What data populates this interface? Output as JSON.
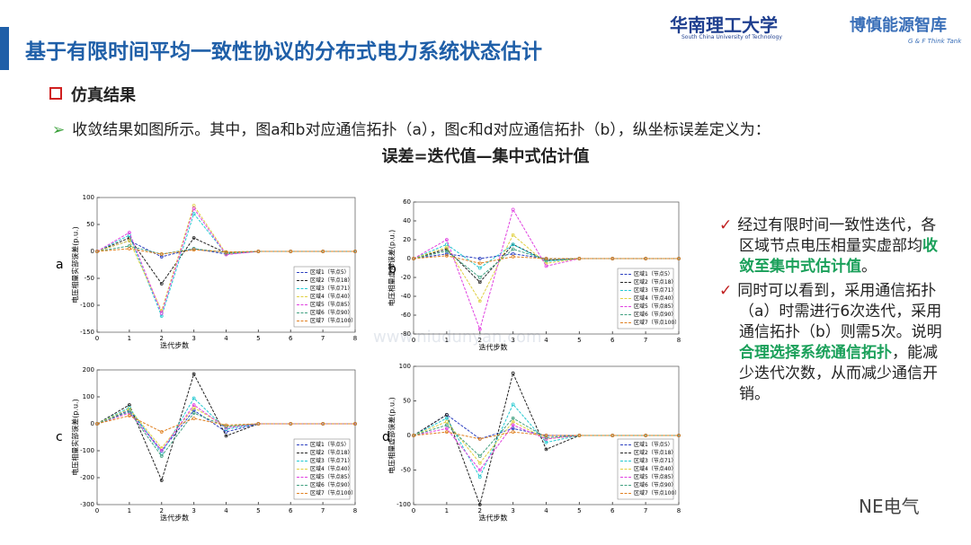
{
  "header": {
    "title": "基于有限时间平均一致性协议的分布式电力系统状态估计",
    "logo1": "华南理工大学",
    "logo1_sub": "South China University of Technology",
    "logo2": "博慎能源智库",
    "logo2_sub": "G & F Think Tank"
  },
  "section": "仿真结果",
  "bullet": "收敛结果如图所示。其中，图a和b对应通信拓扑（a），图c和d对应通信拓扑（b），纵坐标误差定义为：",
  "formula": "误差=迭代值—集中式估计值",
  "notes": [
    {
      "text": "经过有限时间一致性迭代，各区域节点电压相量实虚部均",
      "highlight": "收敛至集中式估计值",
      "tail": "。"
    },
    {
      "text": "同时可以看到，采用通信拓扑（a）时需进行6次迭代，采用通信拓扑（b）则需5次。说明",
      "highlight": "合理选择系统通信拓扑",
      "tail": "，能减少迭代次数，从而减少通信开销。"
    }
  ],
  "watermark": "www.niudunyan.com",
  "footer": "NE电气",
  "charts": [
    {
      "type": "line",
      "label": "a",
      "xlabel": "迭代步数",
      "ylabel": "电压相量实部误差(p.u.)",
      "x": [
        0,
        1,
        2,
        3,
        4,
        5,
        6,
        7,
        8
      ],
      "xlim": [
        0,
        8
      ],
      "xticks": [
        0,
        1,
        2,
        3,
        4,
        5,
        6,
        7,
        8
      ],
      "ylim": [
        -150,
        100
      ],
      "yticks": [
        -150,
        -100,
        -50,
        0,
        50,
        100
      ],
      "series": [
        {
          "name": "区域1（节点5）",
          "color": "#2b3fc0",
          "values": [
            0,
            20,
            -10,
            5,
            -5,
            0,
            0,
            0,
            0
          ]
        },
        {
          "name": "区域2（节点18）",
          "color": "#222222",
          "values": [
            0,
            25,
            -60,
            25,
            -3,
            0,
            0,
            0,
            0
          ]
        },
        {
          "name": "区域3（节点71）",
          "color": "#22c8d0",
          "values": [
            0,
            30,
            -120,
            70,
            -5,
            0,
            0,
            0,
            0
          ]
        },
        {
          "name": "区域4（节点40）",
          "color": "#e0d040",
          "values": [
            0,
            20,
            -110,
            85,
            -4,
            0,
            0,
            0,
            0
          ]
        },
        {
          "name": "区域5（节点85）",
          "color": "#e040e0",
          "values": [
            0,
            35,
            -115,
            80,
            -6,
            0,
            0,
            0,
            0
          ]
        },
        {
          "name": "区域6（节点90）",
          "color": "#40a080",
          "values": [
            0,
            10,
            -5,
            5,
            -2,
            0,
            0,
            0,
            0
          ]
        },
        {
          "name": "区域7（节点100）",
          "color": "#e08020",
          "values": [
            0,
            5,
            -5,
            3,
            -1,
            0,
            0,
            0,
            0
          ]
        }
      ]
    },
    {
      "type": "line",
      "label": "b",
      "xlabel": "迭代步数",
      "ylabel": "电压相量虚部误差(p.u.)",
      "x": [
        0,
        1,
        2,
        3,
        4,
        5,
        6,
        7,
        8
      ],
      "xlim": [
        0,
        8
      ],
      "xticks": [
        0,
        1,
        2,
        3,
        4,
        5,
        6,
        7,
        8
      ],
      "ylim": [
        -80,
        60
      ],
      "yticks": [
        -80,
        -60,
        -40,
        -20,
        0,
        20,
        40,
        60
      ],
      "series": [
        {
          "name": "区域1（节点5）",
          "color": "#2b3fc0",
          "values": [
            0,
            5,
            0,
            5,
            0,
            0,
            0,
            0,
            0
          ]
        },
        {
          "name": "区域2（节点18）",
          "color": "#222222",
          "values": [
            0,
            10,
            -25,
            15,
            -2,
            0,
            0,
            0,
            0
          ]
        },
        {
          "name": "区域3（节点71）",
          "color": "#22c8d0",
          "values": [
            0,
            15,
            -10,
            15,
            -3,
            0,
            0,
            0,
            0
          ]
        },
        {
          "name": "区域4（节点40）",
          "color": "#e0d040",
          "values": [
            0,
            12,
            -45,
            25,
            -5,
            0,
            0,
            0,
            0
          ]
        },
        {
          "name": "区域5（节点85）",
          "color": "#e040e0",
          "values": [
            0,
            20,
            -75,
            52,
            -8,
            0,
            0,
            0,
            0
          ]
        },
        {
          "name": "区域6（节点90）",
          "color": "#40a080",
          "values": [
            0,
            8,
            -20,
            10,
            -1,
            0,
            0,
            0,
            0
          ]
        },
        {
          "name": "区域7（节点100）",
          "color": "#e08020",
          "values": [
            0,
            3,
            -5,
            2,
            0,
            0,
            0,
            0,
            0
          ]
        }
      ]
    },
    {
      "type": "line",
      "label": "c",
      "xlabel": "迭代步数",
      "ylabel": "电压相量实部误差(p.u.)",
      "x": [
        0,
        1,
        2,
        3,
        4,
        5,
        6,
        7,
        8
      ],
      "xlim": [
        0,
        8
      ],
      "xticks": [
        0,
        1,
        2,
        3,
        4,
        5,
        6,
        7,
        8
      ],
      "ylim": [
        -300,
        200
      ],
      "yticks": [
        -300,
        -200,
        -100,
        0,
        100,
        200
      ],
      "series": [
        {
          "name": "区域1（节点5）",
          "color": "#2b3fc0",
          "values": [
            0,
            50,
            -100,
            50,
            -30,
            0,
            0,
            0,
            0
          ]
        },
        {
          "name": "区域2（节点18）",
          "color": "#222222",
          "values": [
            0,
            70,
            -210,
            185,
            -45,
            0,
            0,
            0,
            0
          ]
        },
        {
          "name": "区域3（节点71）",
          "color": "#22c8d0",
          "values": [
            0,
            60,
            -110,
            95,
            -20,
            0,
            0,
            0,
            0
          ]
        },
        {
          "name": "区域4（节点40）",
          "color": "#e0d040",
          "values": [
            0,
            55,
            -90,
            60,
            -10,
            0,
            0,
            0,
            0
          ]
        },
        {
          "name": "区域5（节点85）",
          "color": "#e040e0",
          "values": [
            0,
            40,
            -100,
            70,
            -15,
            0,
            0,
            0,
            0
          ]
        },
        {
          "name": "区域6（节点90）",
          "color": "#40a080",
          "values": [
            0,
            45,
            -120,
            40,
            -10,
            0,
            0,
            0,
            0
          ]
        },
        {
          "name": "区域7（节点100）",
          "color": "#e08020",
          "values": [
            0,
            30,
            -30,
            20,
            -5,
            0,
            0,
            0,
            0
          ]
        }
      ]
    },
    {
      "type": "line",
      "label": "d",
      "xlabel": "迭代步数",
      "ylabel": "电压相量虚部误差(p.u.)",
      "x": [
        0,
        1,
        2,
        3,
        4,
        5,
        6,
        7,
        8
      ],
      "xlim": [
        0,
        8
      ],
      "xticks": [
        0,
        1,
        2,
        3,
        4,
        5,
        6,
        7,
        8
      ],
      "ylim": [
        -100,
        100
      ],
      "yticks": [
        -100,
        -50,
        0,
        50,
        100
      ],
      "series": [
        {
          "name": "区域1（节点5）",
          "color": "#2b3fc0",
          "values": [
            0,
            30,
            -5,
            10,
            0,
            0,
            0,
            0,
            0
          ]
        },
        {
          "name": "区域2（节点18）",
          "color": "#222222",
          "values": [
            0,
            30,
            -100,
            90,
            -20,
            0,
            0,
            0,
            0
          ]
        },
        {
          "name": "区域3（节点71）",
          "color": "#22c8d0",
          "values": [
            0,
            25,
            -60,
            45,
            -10,
            0,
            0,
            0,
            0
          ]
        },
        {
          "name": "区域4（节点40）",
          "color": "#e0d040",
          "values": [
            0,
            20,
            -40,
            20,
            -5,
            0,
            0,
            0,
            0
          ]
        },
        {
          "name": "区域5（节点85）",
          "color": "#e040e0",
          "values": [
            0,
            10,
            -50,
            15,
            -5,
            0,
            0,
            0,
            0
          ]
        },
        {
          "name": "区域6（节点90）",
          "color": "#40a080",
          "values": [
            0,
            15,
            -30,
            25,
            -3,
            0,
            0,
            0,
            0
          ]
        },
        {
          "name": "区域7（节点100）",
          "color": "#e08020",
          "values": [
            0,
            5,
            -5,
            5,
            0,
            0,
            0,
            0,
            0
          ]
        }
      ]
    }
  ]
}
